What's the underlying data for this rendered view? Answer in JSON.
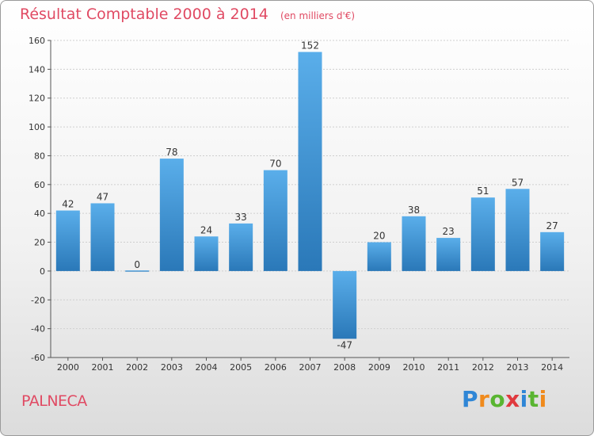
{
  "header": {
    "title": "Résultat Comptable 2000 à 2014",
    "subtitle": "(en milliers d'€)"
  },
  "footer": {
    "commune": "PALNECA",
    "logo_text": "Proxiti"
  },
  "colors": {
    "title": "#e04a63",
    "bar_top": "#5aaeea",
    "bar_bottom": "#2a78b8",
    "axis": "#555555",
    "grid": "#cfcfcf"
  },
  "chart_data": {
    "type": "bar",
    "title": "Résultat Comptable 2000 à 2014",
    "subtitle": "(en milliers d'€)",
    "categories": [
      "2000",
      "2001",
      "2002",
      "2003",
      "2004",
      "2005",
      "2006",
      "2007",
      "2008",
      "2009",
      "2010",
      "2011",
      "2012",
      "2013",
      "2014"
    ],
    "values": [
      42,
      47,
      0,
      78,
      24,
      33,
      70,
      152,
      -47,
      20,
      38,
      23,
      51,
      57,
      27
    ],
    "ylim": [
      -60,
      160
    ],
    "yticks": [
      -60,
      -40,
      -20,
      0,
      20,
      40,
      60,
      80,
      100,
      120,
      140,
      160
    ],
    "xlabel": "",
    "ylabel": "",
    "grid": true,
    "legend": "none"
  }
}
